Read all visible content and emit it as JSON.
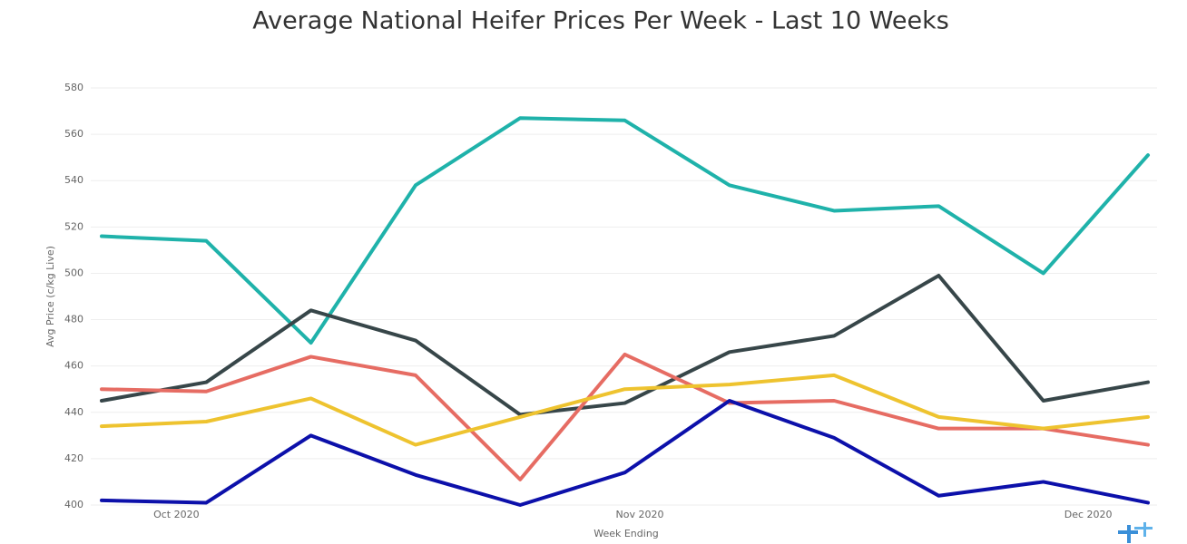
{
  "chart_data": {
    "type": "line",
    "title": "Average National Heifer Prices Per Week - Last 10 Weeks",
    "x_label": "Week Ending",
    "y_label": "Avg Price (c/kg Live)",
    "x": [
      0,
      1,
      2,
      3,
      4,
      5,
      6,
      7,
      8,
      9,
      10
    ],
    "xlim": [
      0,
      10
    ],
    "xticks": [
      {
        "value": 0.714,
        "label": "Oct 2020"
      },
      {
        "value": 5.143,
        "label": "Nov 2020"
      },
      {
        "value": 9.429,
        "label": "Dec 2020"
      }
    ],
    "ylim": [
      400,
      580
    ],
    "yticks": [
      400,
      420,
      440,
      460,
      480,
      500,
      520,
      540,
      560,
      580
    ],
    "grid": true,
    "series": [
      {
        "color": "#1fb2aa",
        "values": [
          516,
          514,
          470,
          538,
          567,
          566,
          538,
          527,
          529,
          500,
          551
        ]
      },
      {
        "color": "#374649",
        "values": [
          445,
          453,
          484,
          471,
          439,
          444,
          466,
          473,
          499,
          445,
          453
        ]
      },
      {
        "color": "#e66c63",
        "values": [
          450,
          449,
          464,
          456,
          411,
          465,
          444,
          445,
          433,
          433,
          426
        ]
      },
      {
        "color": "#eec32f",
        "values": [
          434,
          436,
          446,
          426,
          438,
          450,
          452,
          456,
          438,
          433,
          438
        ]
      },
      {
        "color": "#0c10aa",
        "values": [
          402,
          401,
          430,
          413,
          400,
          414,
          445,
          429,
          404,
          410,
          401
        ]
      }
    ]
  }
}
